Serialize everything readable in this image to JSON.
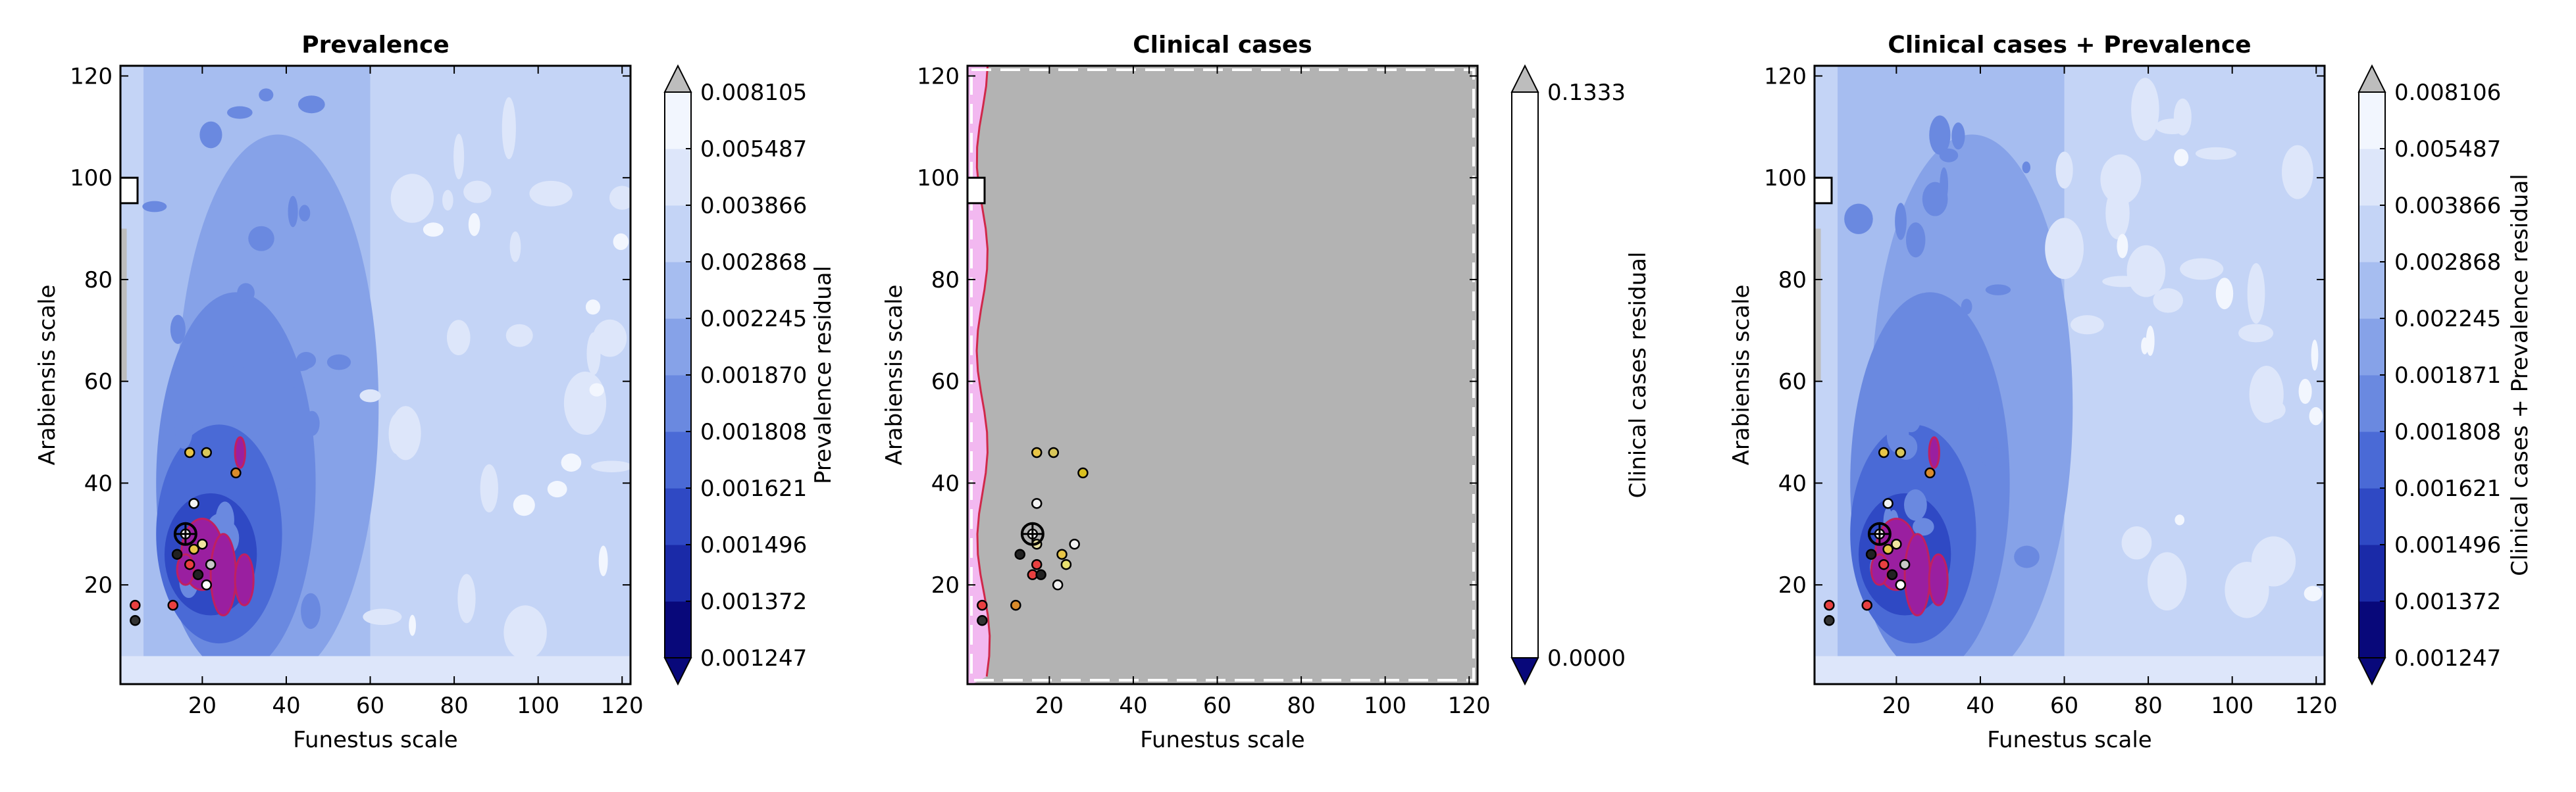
{
  "chart_data": [
    {
      "type": "contour",
      "title": "Prevalence",
      "xlabel": "Funestus scale",
      "ylabel": "Arabiensis scale",
      "xlim": [
        0.5,
        122
      ],
      "ylim": [
        0.5,
        122
      ],
      "xticks": [
        "20",
        "40",
        "60",
        "80",
        "100",
        "120"
      ],
      "yticks": [
        "20",
        "40",
        "60",
        "80",
        "100",
        "120"
      ],
      "colorbar": {
        "label": "Prevalence residual",
        "levels": [
          "0.001247",
          "0.001372",
          "0.001496",
          "0.001621",
          "0.001808",
          "0.001870",
          "0.002245",
          "0.002868",
          "0.003866",
          "0.005487",
          "0.008105"
        ],
        "colors": [
          "#08087a",
          "#1a2aa8",
          "#2f49c4",
          "#4a6ad6",
          "#6a89e0",
          "#86a2e8",
          "#a6bdf0",
          "#c4d4f6",
          "#dde6fa",
          "#f2f6fe"
        ],
        "extend_low": "#08087a",
        "extend_high": "#bdbdbd"
      },
      "points": [
        {
          "x": 17,
          "y": 46,
          "color": "#e8c547"
        },
        {
          "x": 21,
          "y": 46,
          "color": "#d9c75a"
        },
        {
          "x": 28,
          "y": 42,
          "color": "#d98b2b"
        },
        {
          "x": 18,
          "y": 36,
          "color": "#f2f2f2"
        },
        {
          "x": 16,
          "y": 30,
          "color": "#ffffff"
        },
        {
          "x": 20,
          "y": 28,
          "color": "#f0e6a0"
        },
        {
          "x": 18,
          "y": 27,
          "color": "#e8c547"
        },
        {
          "x": 14,
          "y": 26,
          "color": "#222222"
        },
        {
          "x": 17,
          "y": 24,
          "color": "#e84040"
        },
        {
          "x": 22,
          "y": 24,
          "color": "#c8c8c8"
        },
        {
          "x": 19,
          "y": 22,
          "color": "#222222"
        },
        {
          "x": 21,
          "y": 20,
          "color": "#ffffff"
        },
        {
          "x": 4,
          "y": 16,
          "color": "#e84040"
        },
        {
          "x": 13,
          "y": 16,
          "color": "#e84040"
        },
        {
          "x": 4,
          "y": 13,
          "color": "#333333"
        }
      ],
      "best_marker": {
        "x": 16,
        "y": 30
      }
    },
    {
      "type": "contour",
      "title": "Clinical cases",
      "xlabel": "Funestus scale",
      "ylabel": "Arabiensis scale",
      "xlim": [
        0.5,
        122
      ],
      "ylim": [
        0.5,
        122
      ],
      "xticks": [
        "20",
        "40",
        "60",
        "80",
        "100",
        "120"
      ],
      "yticks": [
        "20",
        "40",
        "60",
        "80",
        "100",
        "120"
      ],
      "colorbar": {
        "label": "Clinical cases residual",
        "levels": [
          "0.0000",
          "0.1333"
        ],
        "colors": [
          "#ffffff"
        ],
        "extend_low": "#08087a",
        "extend_high": "#bdbdbd"
      },
      "points": [
        {
          "x": 17,
          "y": 46,
          "color": "#e8c547"
        },
        {
          "x": 21,
          "y": 46,
          "color": "#d9c75a"
        },
        {
          "x": 28,
          "y": 42,
          "color": "#d9c020"
        },
        {
          "x": 17,
          "y": 36,
          "color": "#f2f2f2"
        },
        {
          "x": 16,
          "y": 30,
          "color": "#ffffff"
        },
        {
          "x": 17,
          "y": 28,
          "color": "#e8e0a0"
        },
        {
          "x": 26,
          "y": 28,
          "color": "#f2f2f2"
        },
        {
          "x": 13,
          "y": 26,
          "color": "#222222"
        },
        {
          "x": 23,
          "y": 26,
          "color": "#e8c547"
        },
        {
          "x": 17,
          "y": 24,
          "color": "#e84040"
        },
        {
          "x": 24,
          "y": 24,
          "color": "#e8e070"
        },
        {
          "x": 16,
          "y": 22,
          "color": "#e84040"
        },
        {
          "x": 18,
          "y": 22,
          "color": "#222222"
        },
        {
          "x": 22,
          "y": 20,
          "color": "#f2f2f2"
        },
        {
          "x": 4,
          "y": 16,
          "color": "#e84040"
        },
        {
          "x": 12,
          "y": 16,
          "color": "#d98b2b"
        },
        {
          "x": 4,
          "y": 13,
          "color": "#333333"
        }
      ],
      "best_marker": {
        "x": 16,
        "y": 30
      }
    },
    {
      "type": "contour",
      "title": "Clinical cases + Prevalence",
      "xlabel": "Funestus scale",
      "ylabel": "Arabiensis scale",
      "xlim": [
        0.5,
        122
      ],
      "ylim": [
        0.5,
        122
      ],
      "xticks": [
        "20",
        "40",
        "60",
        "80",
        "100",
        "120"
      ],
      "yticks": [
        "20",
        "40",
        "60",
        "80",
        "100",
        "120"
      ],
      "colorbar": {
        "label": "Clinical cases + Prevalence residual",
        "levels": [
          "0.001247",
          "0.001372",
          "0.001496",
          "0.001621",
          "0.001808",
          "0.001871",
          "0.002245",
          "0.002868",
          "0.003866",
          "0.005487",
          "0.008106"
        ],
        "colors": [
          "#08087a",
          "#1a2aa8",
          "#2f49c4",
          "#4a6ad6",
          "#6a89e0",
          "#86a2e8",
          "#a6bdf0",
          "#c4d4f6",
          "#dde6fa",
          "#f2f6fe"
        ],
        "extend_low": "#08087a",
        "extend_high": "#bdbdbd"
      },
      "points": [
        {
          "x": 17,
          "y": 46,
          "color": "#e8c547"
        },
        {
          "x": 21,
          "y": 46,
          "color": "#d9c75a"
        },
        {
          "x": 28,
          "y": 42,
          "color": "#d98b2b"
        },
        {
          "x": 18,
          "y": 36,
          "color": "#f2f2f2"
        },
        {
          "x": 16,
          "y": 30,
          "color": "#ffffff"
        },
        {
          "x": 20,
          "y": 28,
          "color": "#f0e6a0"
        },
        {
          "x": 18,
          "y": 27,
          "color": "#e8c547"
        },
        {
          "x": 14,
          "y": 26,
          "color": "#222222"
        },
        {
          "x": 17,
          "y": 24,
          "color": "#e84040"
        },
        {
          "x": 22,
          "y": 24,
          "color": "#c8c8c8"
        },
        {
          "x": 19,
          "y": 22,
          "color": "#222222"
        },
        {
          "x": 21,
          "y": 20,
          "color": "#ffffff"
        },
        {
          "x": 4,
          "y": 16,
          "color": "#e84040"
        },
        {
          "x": 13,
          "y": 16,
          "color": "#e84040"
        },
        {
          "x": 4,
          "y": 13,
          "color": "#333333"
        }
      ],
      "best_marker": {
        "x": 16,
        "y": 30
      }
    }
  ]
}
